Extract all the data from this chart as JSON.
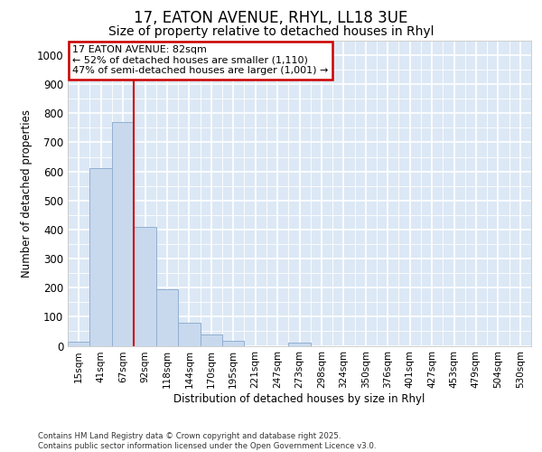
{
  "title_line1": "17, EATON AVENUE, RHYL, LL18 3UE",
  "title_line2": "Size of property relative to detached houses in Rhyl",
  "xlabel": "Distribution of detached houses by size in Rhyl",
  "ylabel": "Number of detached properties",
  "categories": [
    "15sqm",
    "41sqm",
    "67sqm",
    "92sqm",
    "118sqm",
    "144sqm",
    "170sqm",
    "195sqm",
    "221sqm",
    "247sqm",
    "273sqm",
    "298sqm",
    "324sqm",
    "350sqm",
    "376sqm",
    "401sqm",
    "427sqm",
    "453sqm",
    "479sqm",
    "504sqm",
    "530sqm"
  ],
  "values": [
    15,
    610,
    770,
    410,
    195,
    78,
    40,
    18,
    0,
    0,
    12,
    0,
    0,
    0,
    0,
    0,
    0,
    0,
    0,
    0,
    0
  ],
  "bar_color": "#c8d9ee",
  "bar_edge_color": "#92afd0",
  "red_line_x": 2.5,
  "annotation_text": "17 EATON AVENUE: 82sqm\n← 52% of detached houses are smaller (1,110)\n47% of semi-detached houses are larger (1,001) →",
  "annotation_box_facecolor": "#ffffff",
  "annotation_box_edgecolor": "#cc0000",
  "ylim": [
    0,
    1050
  ],
  "yticks": [
    0,
    100,
    200,
    300,
    400,
    500,
    600,
    700,
    800,
    900,
    1000
  ],
  "plot_bg_color": "#dce8f5",
  "grid_color": "#ffffff",
  "fig_bg_color": "#ffffff",
  "footer_text": "Contains HM Land Registry data © Crown copyright and database right 2025.\nContains public sector information licensed under the Open Government Licence v3.0."
}
